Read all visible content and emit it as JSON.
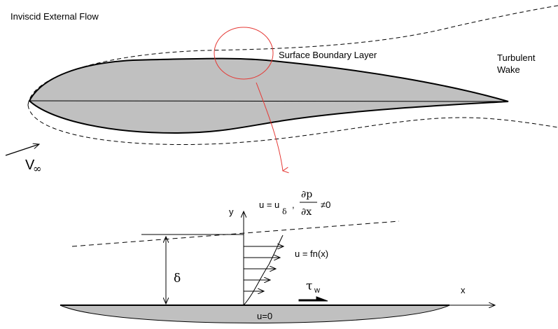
{
  "upper": {
    "inviscid_label": "Inviscid External Flow",
    "boundary_layer_label": "Surface Boundary Layer",
    "wake_line1": "Turbulent",
    "wake_line2": "Wake",
    "velocity_symbol": "V",
    "velocity_subscript": "∞"
  },
  "lower": {
    "y_axis": "y",
    "x_axis": "x",
    "edge_condition_lhs": "u = u",
    "edge_condition_sub": "δ",
    "edge_condition_sep": ",",
    "dp_num": "∂p",
    "dp_den": "∂x",
    "dp_rel": "≠0",
    "profile_label": "u = fn(x)",
    "thickness_symbol": "δ",
    "shear_symbol": "τ",
    "shear_subscript": "w",
    "wall_condition": "u=0"
  },
  "colors": {
    "fill": "#c0c0c0",
    "line": "#000000",
    "highlight": "#e53935"
  }
}
